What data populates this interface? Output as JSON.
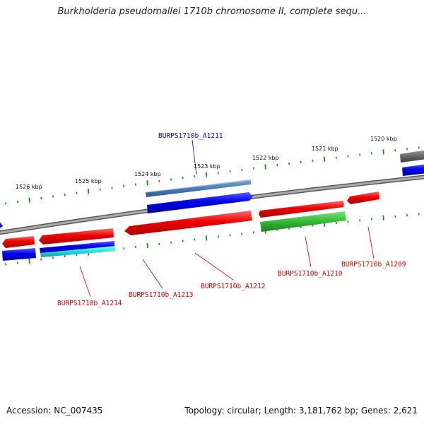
{
  "title": "Burkholderia pseudomallei 1710b chromosome II, complete sequ...",
  "footer": {
    "accession": "Accession: NC_007435",
    "summary": "Topology: circular; Length: 3,181,762 bp; Genes: 2,621"
  },
  "scale_labels": [
    "1526 kbp",
    "1525 kbp",
    "1524 kbp",
    "1523 kbp",
    "1522 kbp",
    "1521 kbp",
    "1520 kbp"
  ],
  "gene_labels": {
    "A1211": "BURPS1710b_A1211",
    "A1214": "BURPS1710b_A1214",
    "A1213": "BURPS1710b_A1213",
    "A1212": "BURPS1710b_A1212",
    "A1210": "BURPS1710b_A1210",
    "A1209": "BURPS1710b_A1209"
  },
  "colors": {
    "backbone": "#8a8a8a",
    "tick": "#1a8a1a",
    "gene_red": "#ee0000",
    "gene_blue": "#0000ee",
    "gene_steelblue": "#4a7fb5",
    "gene_green": "#33bb33",
    "gene_cyan": "#22dddd",
    "gene_gray": "#666666",
    "label_red": "#cc0000",
    "label_blue": "#0000aa"
  }
}
